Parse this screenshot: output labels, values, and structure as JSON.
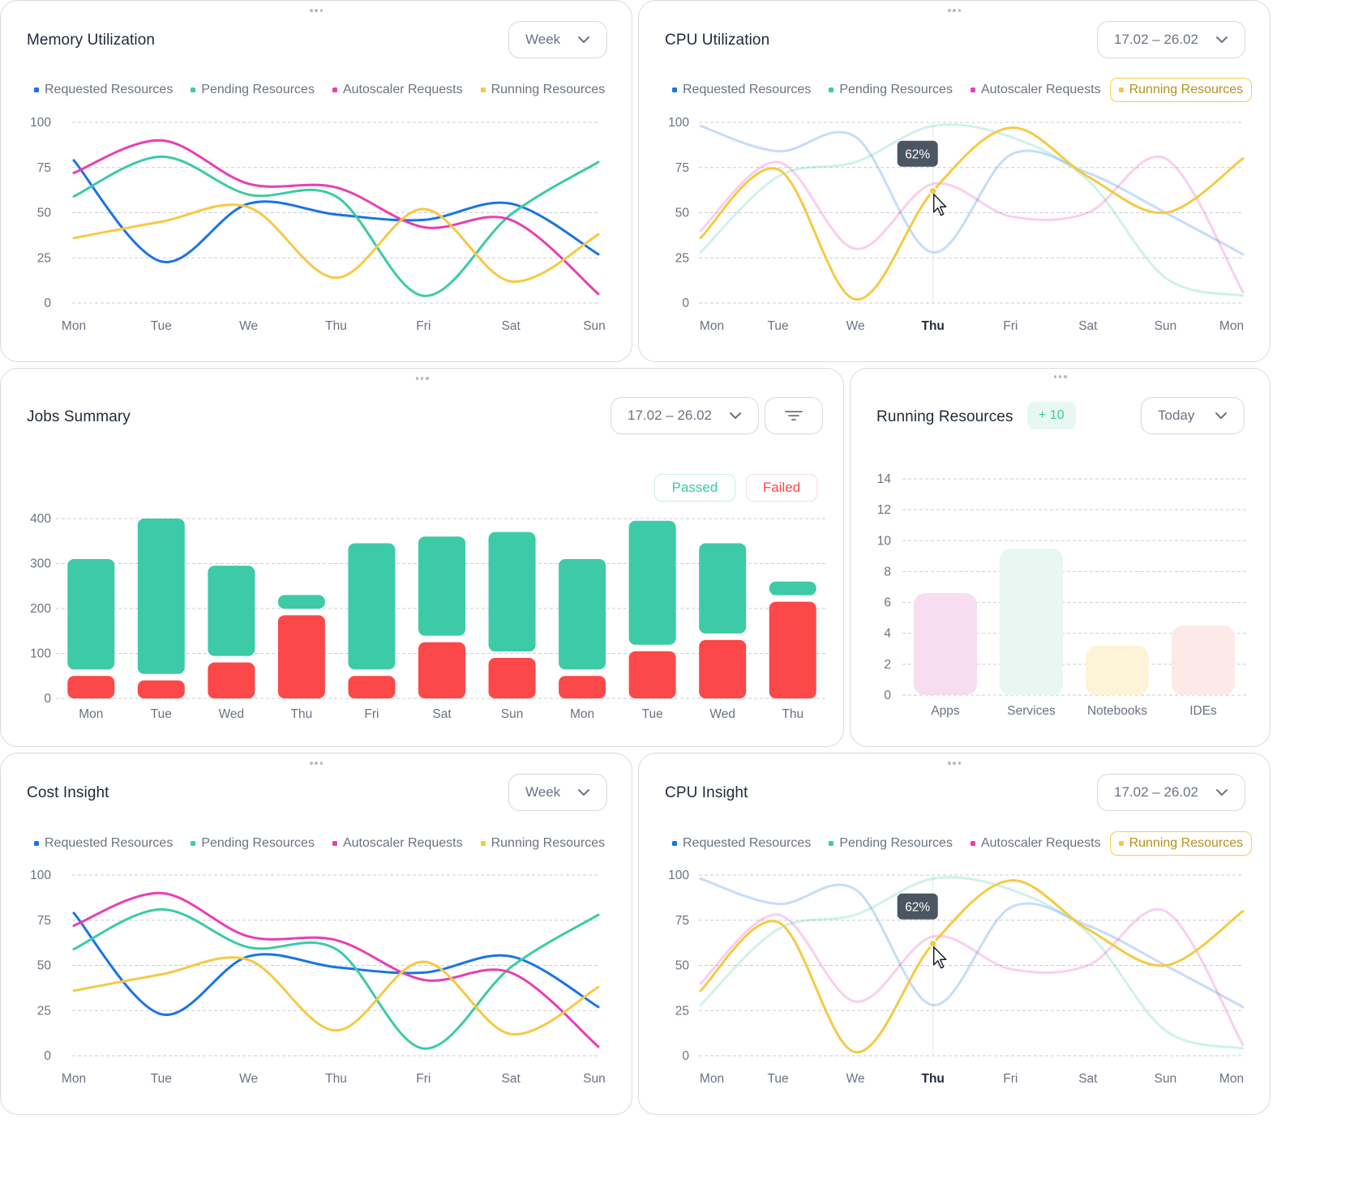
{
  "colors": {
    "requested": "#1a73e8",
    "pending": "#3ccba6",
    "autoscaler": "#e83eb6",
    "running": "#f6c944",
    "passed": "#3ccba6",
    "failed": "#fc4848"
  },
  "legend": {
    "requested": "Requested Resources",
    "pending": "Pending Resources",
    "autoscaler": "Autoscaler Requests",
    "running": "Running Resources"
  },
  "memory": {
    "title": "Memory Utilization",
    "range": "Week",
    "chart_data": {
      "type": "line",
      "x": [
        "Mon",
        "Tue",
        "We",
        "Thu",
        "Fri",
        "Sat",
        "Sun"
      ],
      "ylim": [
        0,
        100
      ],
      "yticks": [
        100,
        75,
        50,
        25,
        0
      ],
      "series": [
        {
          "name": "Requested Resources",
          "values": [
            79,
            23,
            55,
            49,
            46,
            55,
            27
          ]
        },
        {
          "name": "Pending Resources",
          "values": [
            59,
            81,
            60,
            59,
            4,
            49,
            78
          ]
        },
        {
          "name": "Autoscaler Requests",
          "values": [
            72,
            90,
            66,
            64,
            42,
            46,
            5
          ]
        },
        {
          "name": "Running Resources",
          "values": [
            36,
            45,
            53,
            14,
            52,
            12,
            38
          ]
        }
      ]
    }
  },
  "cpu_util": {
    "title": "CPU Utilization",
    "range": "17.02 – 26.02",
    "tooltip": "62%",
    "chart_data": {
      "type": "line",
      "x": [
        "Mon",
        "Tue",
        "We",
        "Thu",
        "Fri",
        "Sat",
        "Sun",
        "Mon"
      ],
      "highlight_x": "Thu",
      "highlight_series": "Running Resources",
      "ylim": [
        0,
        100
      ],
      "yticks": [
        100,
        75,
        50,
        25,
        0
      ],
      "series": [
        {
          "name": "Requested Resources",
          "values": [
            98,
            84,
            92,
            28,
            82,
            72,
            50,
            27
          ]
        },
        {
          "name": "Pending Resources",
          "values": [
            28,
            70,
            78,
            98,
            92,
            68,
            14,
            4
          ]
        },
        {
          "name": "Autoscaler Requests",
          "values": [
            40,
            78,
            30,
            66,
            48,
            50,
            80,
            6
          ]
        },
        {
          "name": "Running Resources",
          "values": [
            36,
            74,
            2,
            62,
            97,
            70,
            50,
            80
          ]
        }
      ]
    }
  },
  "jobs": {
    "title": "Jobs Summary",
    "range": "17.02 – 26.02",
    "passed_label": "Passed",
    "failed_label": "Failed",
    "chart_data": {
      "type": "bar",
      "categories": [
        "Mon",
        "Tue",
        "Wed",
        "Thu",
        "Fri",
        "Sat",
        "Sun",
        "Mon",
        "Tue",
        "Wed",
        "Thu"
      ],
      "ylim": [
        0,
        400
      ],
      "yticks": [
        400,
        300,
        200,
        100,
        0
      ],
      "series": [
        {
          "name": "Failed",
          "values": [
            50,
            40,
            80,
            185,
            50,
            125,
            90,
            50,
            105,
            130,
            215
          ]
        },
        {
          "name": "Passed",
          "values": [
            260,
            360,
            215,
            45,
            295,
            235,
            280,
            260,
            290,
            215,
            45
          ]
        }
      ]
    }
  },
  "running": {
    "title": "Running Resources",
    "badge": "+ 10",
    "range": "Today",
    "chart_data": {
      "type": "bar",
      "categories": [
        "Apps",
        "Services",
        "Notebooks",
        "IDEs"
      ],
      "values": [
        6.6,
        9.5,
        3.2,
        4.5
      ],
      "colors": [
        "#f8dcef",
        "#e8f7f2",
        "#fdf4d8",
        "#fde9e8"
      ],
      "ylim": [
        0,
        14
      ],
      "yticks": [
        14,
        12,
        10,
        8,
        6,
        4,
        2,
        0
      ]
    }
  },
  "cost": {
    "title": "Cost Insight",
    "range": "Week",
    "chart_data": {
      "type": "line",
      "x": [
        "Mon",
        "Tue",
        "We",
        "Thu",
        "Fri",
        "Sat",
        "Sun"
      ],
      "ylim": [
        0,
        100
      ],
      "yticks": [
        100,
        75,
        50,
        25,
        0
      ],
      "series": [
        {
          "name": "Requested Resources",
          "values": [
            79,
            23,
            55,
            49,
            46,
            55,
            27
          ]
        },
        {
          "name": "Pending Resources",
          "values": [
            59,
            81,
            60,
            59,
            4,
            49,
            78
          ]
        },
        {
          "name": "Autoscaler Requests",
          "values": [
            72,
            90,
            66,
            64,
            42,
            46,
            5
          ]
        },
        {
          "name": "Running Resources",
          "values": [
            36,
            45,
            53,
            14,
            52,
            12,
            38
          ]
        }
      ]
    }
  },
  "cpu_insight": {
    "title": "CPU Insight",
    "range": "17.02 – 26.02",
    "tooltip": "62%",
    "chart_data": {
      "type": "line",
      "x": [
        "Mon",
        "Tue",
        "We",
        "Thu",
        "Fri",
        "Sat",
        "Sun",
        "Mon"
      ],
      "highlight_x": "Thu",
      "highlight_series": "Running Resources",
      "ylim": [
        0,
        100
      ],
      "yticks": [
        100,
        75,
        50,
        25,
        0
      ],
      "series": [
        {
          "name": "Requested Resources",
          "values": [
            98,
            84,
            92,
            28,
            82,
            72,
            50,
            27
          ]
        },
        {
          "name": "Pending Resources",
          "values": [
            28,
            70,
            78,
            98,
            92,
            68,
            14,
            4
          ]
        },
        {
          "name": "Autoscaler Requests",
          "values": [
            40,
            78,
            30,
            66,
            48,
            50,
            80,
            6
          ]
        },
        {
          "name": "Running Resources",
          "values": [
            36,
            74,
            2,
            62,
            97,
            70,
            50,
            80
          ]
        }
      ]
    }
  }
}
